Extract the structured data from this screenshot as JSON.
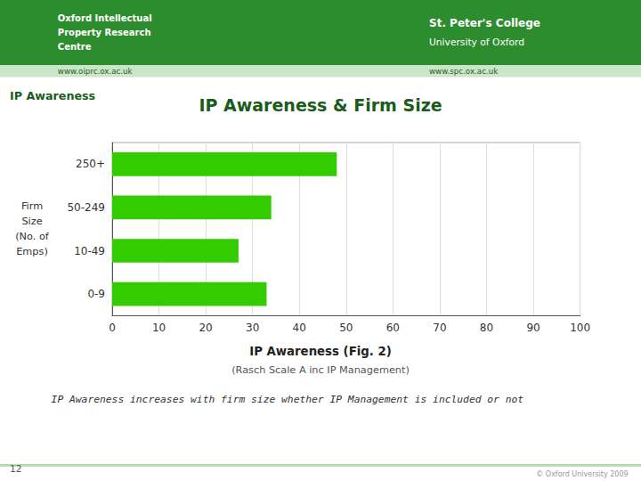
{
  "chart_data": {
    "type": "bar",
    "orientation": "horizontal",
    "title": "IP Awareness & Firm Size",
    "categories": [
      "0-9",
      "10-49",
      "50-249",
      "250+"
    ],
    "values": [
      33,
      27,
      34,
      48
    ],
    "color": "#33cc00",
    "xlim": [
      0,
      100
    ],
    "xticks": [
      0,
      10,
      20,
      30,
      40,
      50,
      60,
      70,
      80,
      90,
      100
    ],
    "grid": true,
    "xlabel": "IP Awareness (Fig. 2)",
    "ylabel": "Firm\nSize\n(No. of\nEmps)",
    "annotations": [
      "Oxford Intellectual",
      "Property Research",
      "Centre",
      "St. Peter's College",
      "University of Oxford",
      "www.oiprc.ox.ac.uk",
      "www.spc.ox.ac.uk",
      "IP Awareness",
      "12",
      "© Oxford University 2009",
      "(Rasch Scale A inc IP Management)",
      "IP Awareness increases with firm size whether IP Management is included or not"
    ]
  }
}
